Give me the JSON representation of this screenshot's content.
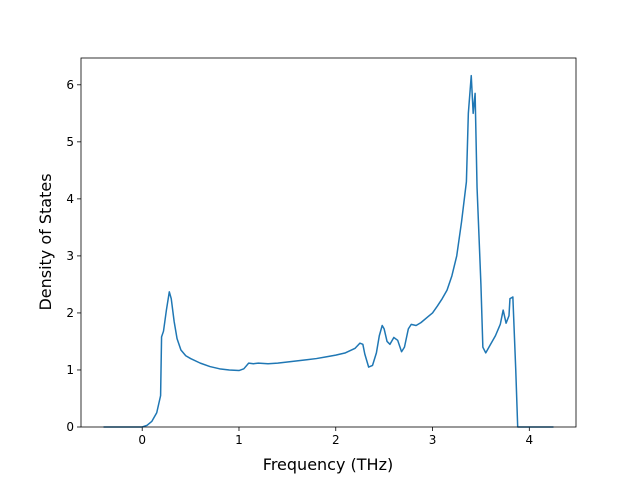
{
  "chart_data": {
    "type": "line",
    "xlabel": "Frequency (THz)",
    "ylabel": "Density of States",
    "x": [
      -0.4,
      0,
      0.05,
      0.1,
      0.15,
      0.19,
      0.2,
      0.22,
      0.25,
      0.28,
      0.3,
      0.33,
      0.36,
      0.4,
      0.45,
      0.5,
      0.6,
      0.7,
      0.8,
      0.9,
      1.0,
      1.05,
      1.1,
      1.15,
      1.2,
      1.3,
      1.4,
      1.5,
      1.6,
      1.7,
      1.8,
      1.9,
      2.0,
      2.1,
      2.2,
      2.25,
      2.28,
      2.3,
      2.34,
      2.38,
      2.42,
      2.45,
      2.48,
      2.5,
      2.53,
      2.56,
      2.6,
      2.64,
      2.68,
      2.71,
      2.75,
      2.78,
      2.83,
      2.88,
      2.95,
      3.0,
      3.05,
      3.1,
      3.15,
      3.2,
      3.25,
      3.3,
      3.35,
      3.37,
      3.4,
      3.42,
      3.44,
      3.46,
      3.5,
      3.52,
      3.55,
      3.6,
      3.65,
      3.7,
      3.73,
      3.76,
      3.79,
      3.8,
      3.83,
      3.86,
      3.88,
      4.0,
      4.25
    ],
    "series": [
      {
        "color": "#1f77b4",
        "values": [
          0,
          0,
          0.03,
          0.1,
          0.25,
          0.55,
          1.58,
          1.68,
          2.05,
          2.37,
          2.25,
          1.85,
          1.55,
          1.35,
          1.25,
          1.2,
          1.12,
          1.06,
          1.02,
          1.0,
          0.99,
          1.02,
          1.12,
          1.11,
          1.12,
          1.11,
          1.12,
          1.14,
          1.16,
          1.18,
          1.2,
          1.23,
          1.26,
          1.3,
          1.38,
          1.47,
          1.45,
          1.28,
          1.05,
          1.08,
          1.3,
          1.6,
          1.78,
          1.72,
          1.5,
          1.45,
          1.57,
          1.52,
          1.32,
          1.4,
          1.72,
          1.8,
          1.78,
          1.83,
          1.93,
          2.0,
          2.12,
          2.25,
          2.4,
          2.65,
          3.0,
          3.6,
          4.3,
          5.5,
          6.16,
          5.5,
          5.85,
          4.2,
          2.5,
          1.4,
          1.3,
          1.45,
          1.6,
          1.8,
          2.05,
          1.82,
          1.95,
          2.25,
          2.28,
          1.0,
          0,
          0,
          0
        ]
      }
    ],
    "xlim": [
      -0.6325,
      4.4825
    ],
    "xticks": [
      0,
      1,
      2,
      3,
      4
    ],
    "ylim": [
      0,
      6.47
    ],
    "yticks": [
      0,
      1,
      2,
      3,
      4,
      5,
      6
    ]
  }
}
